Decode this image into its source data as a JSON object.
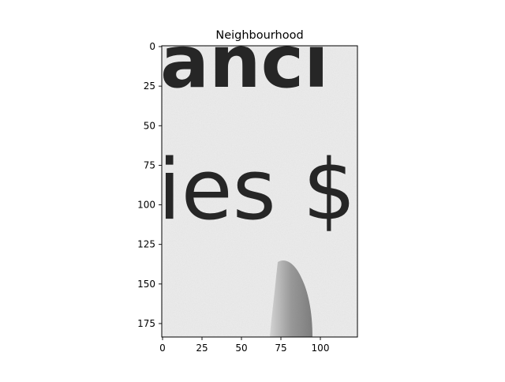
{
  "chart_data": {
    "type": "image",
    "title": "Neighbourhood",
    "xlabel": "",
    "ylabel": "",
    "xlim": [
      -0.5,
      123.5
    ],
    "ylim": [
      183.5,
      -0.5
    ],
    "y_inverted": true,
    "x_ticks": [
      0,
      25,
      50,
      75,
      100
    ],
    "y_ticks": [
      0,
      25,
      50,
      75,
      100,
      125,
      150,
      175
    ],
    "colormap": "gray",
    "image_text_lines": [
      "anci",
      "ies $"
    ]
  }
}
